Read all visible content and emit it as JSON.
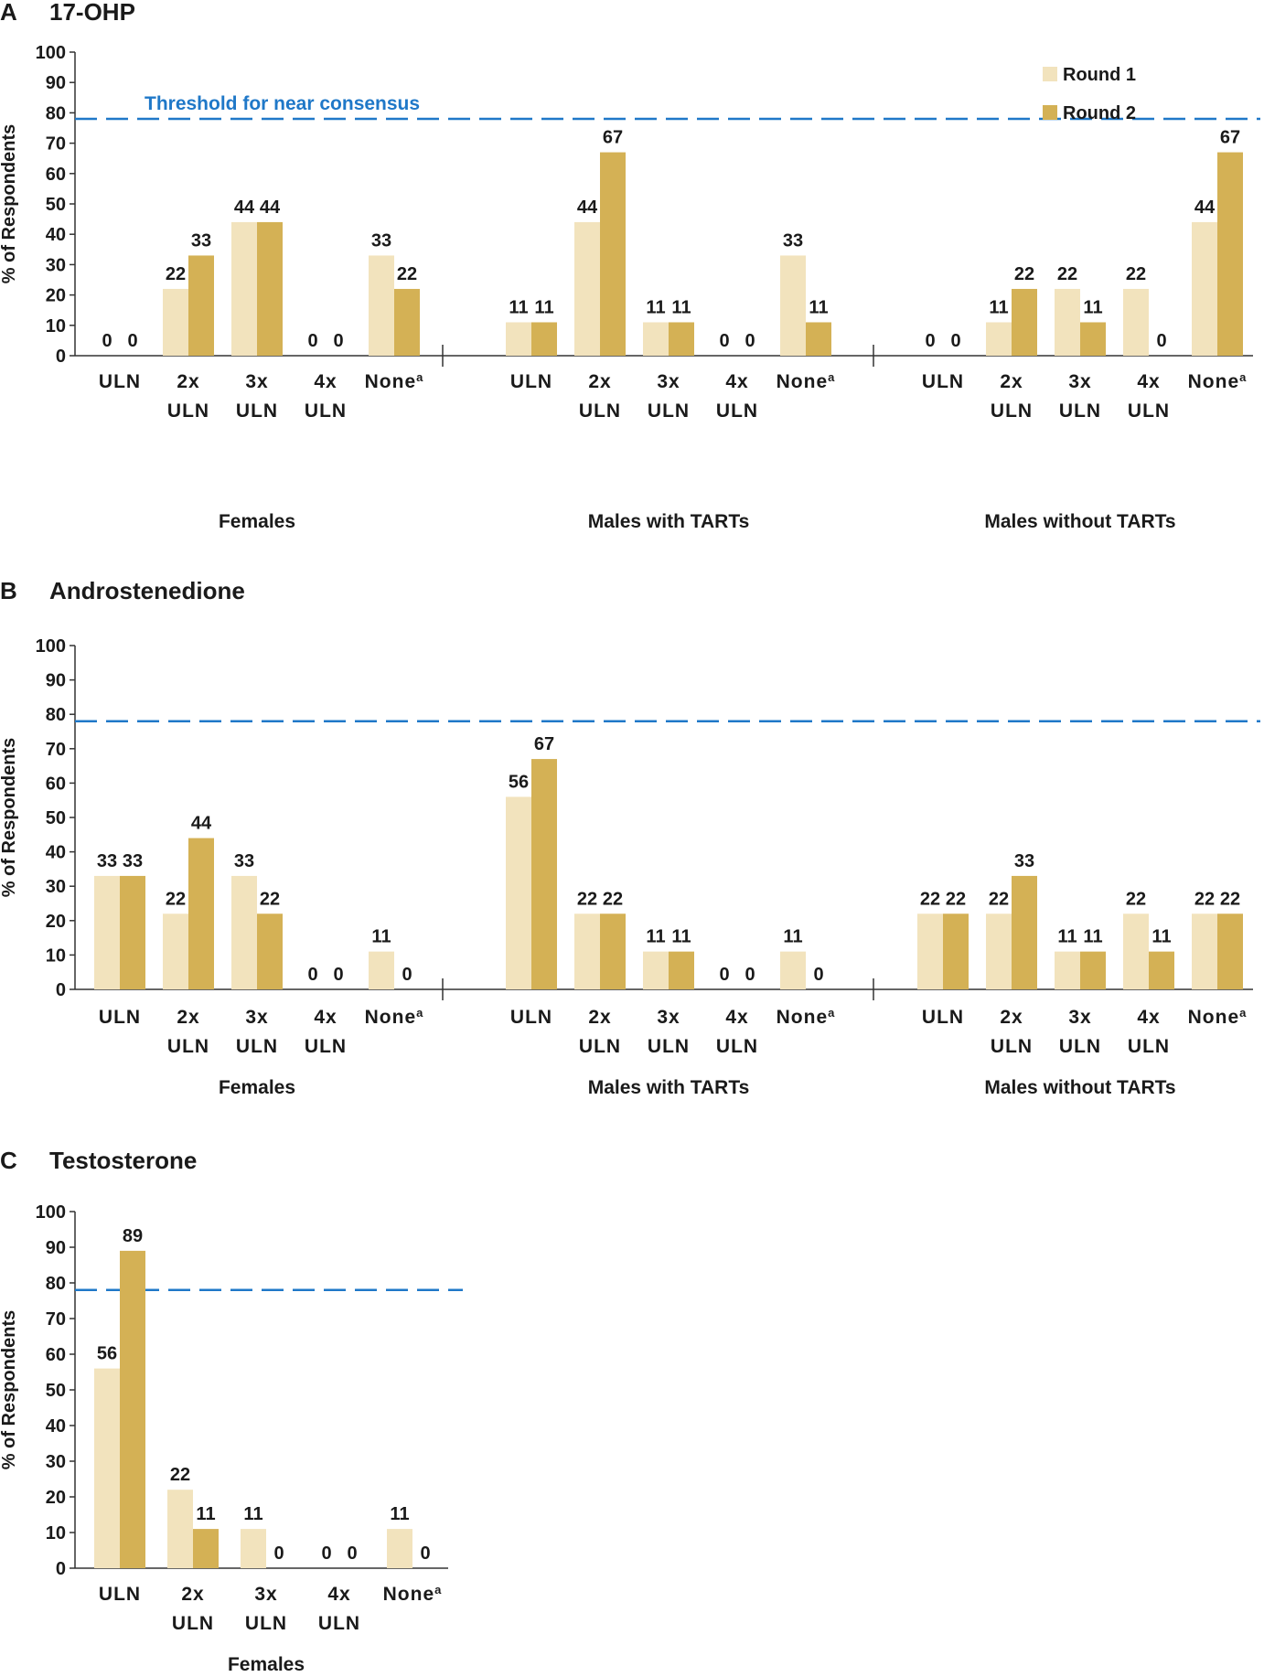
{
  "colors": {
    "round1": "#F2E3BD",
    "round2": "#D4B155",
    "threshold": "#1F78C8",
    "axis": "#333333"
  },
  "legend": {
    "round1": "Round 1",
    "round2": "Round 2"
  },
  "threshold_label": "Threshold for near consensus",
  "chart_data": [
    {
      "type": "bar",
      "panel": "A",
      "title": "17-OHP",
      "ylabel": "% of Respondents",
      "ylim": [
        0,
        100
      ],
      "yticks": [
        0,
        10,
        20,
        30,
        40,
        50,
        60,
        70,
        80,
        90,
        100
      ],
      "threshold": 78,
      "categories": [
        [
          "ULN"
        ],
        [
          "2x",
          "ULN"
        ],
        [
          "3x",
          "ULN"
        ],
        [
          "4x",
          "ULN"
        ],
        [
          "None",
          "a"
        ]
      ],
      "groups": [
        {
          "name": "Females",
          "round1": [
            0,
            22,
            44,
            0,
            33
          ],
          "round2": [
            0,
            33,
            44,
            0,
            22
          ]
        },
        {
          "name": "Males with TARTs",
          "round1": [
            11,
            44,
            11,
            0,
            33
          ],
          "round2": [
            11,
            67,
            11,
            0,
            11
          ]
        },
        {
          "name": "Males without TARTs",
          "round1": [
            0,
            11,
            22,
            22,
            44
          ],
          "round2": [
            0,
            22,
            11,
            0,
            67
          ]
        }
      ]
    },
    {
      "type": "bar",
      "panel": "B",
      "title": "Androstenedione",
      "ylabel": "% of Respondents",
      "ylim": [
        0,
        100
      ],
      "yticks": [
        0,
        10,
        20,
        30,
        40,
        50,
        60,
        70,
        80,
        90,
        100
      ],
      "threshold": 78,
      "categories": [
        [
          "ULN"
        ],
        [
          "2x",
          "ULN"
        ],
        [
          "3x",
          "ULN"
        ],
        [
          "4x",
          "ULN"
        ],
        [
          "None",
          "a"
        ]
      ],
      "groups": [
        {
          "name": "Females",
          "round1": [
            33,
            22,
            33,
            0,
            11
          ],
          "round2": [
            33,
            44,
            22,
            0,
            0
          ]
        },
        {
          "name": "Males with TARTs",
          "round1": [
            56,
            22,
            11,
            0,
            11
          ],
          "round2": [
            67,
            22,
            11,
            0,
            0
          ]
        },
        {
          "name": "Males without TARTs",
          "round1": [
            22,
            22,
            11,
            22,
            22
          ],
          "round2": [
            22,
            33,
            11,
            11,
            22
          ]
        }
      ]
    },
    {
      "type": "bar",
      "panel": "C",
      "title": "Testosterone",
      "ylabel": "% of Respondents",
      "ylim": [
        0,
        100
      ],
      "yticks": [
        0,
        10,
        20,
        30,
        40,
        50,
        60,
        70,
        80,
        90,
        100
      ],
      "threshold": 78,
      "categories": [
        [
          "ULN"
        ],
        [
          "2x",
          "ULN"
        ],
        [
          "3x",
          "ULN"
        ],
        [
          "4x",
          "ULN"
        ],
        [
          "None",
          "a"
        ]
      ],
      "groups": [
        {
          "name": "Females",
          "round1": [
            56,
            22,
            11,
            0,
            11
          ],
          "round2": [
            89,
            11,
            0,
            0,
            0
          ]
        }
      ]
    }
  ]
}
